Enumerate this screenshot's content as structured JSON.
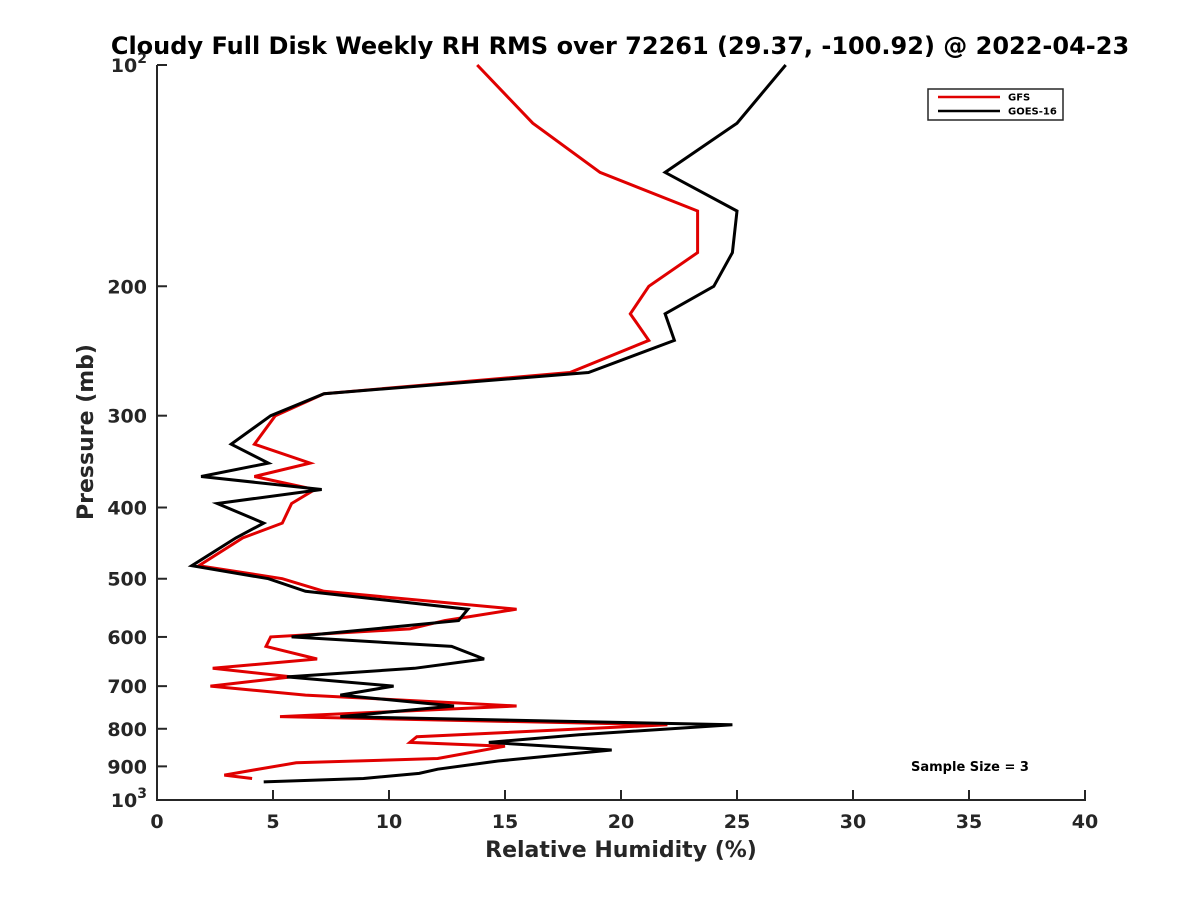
{
  "chart_data": {
    "type": "line",
    "title": "Cloudy Full Disk Weekly RH RMS over 72261 (29.37, -100.92) @ 2022-04-23",
    "xlabel": "Relative Humidity (%)",
    "ylabel": "Pressure (mb)",
    "xlim": [
      0,
      40
    ],
    "ylim": [
      100,
      1000
    ],
    "yscale": "log",
    "yreversed": true,
    "grid": false,
    "legend_position": "top-right",
    "x_ticks": [
      "0",
      "5",
      "10",
      "15",
      "20",
      "25",
      "30",
      "35",
      "40"
    ],
    "y_ticks": [
      {
        "value": 100,
        "base": "10",
        "exp": "2"
      },
      {
        "value": 200,
        "label": "200"
      },
      {
        "value": 300,
        "label": "300"
      },
      {
        "value": 400,
        "label": "400"
      },
      {
        "value": 500,
        "label": "500"
      },
      {
        "value": 600,
        "label": "600"
      },
      {
        "value": 700,
        "label": "700"
      },
      {
        "value": 800,
        "label": "800"
      },
      {
        "value": 900,
        "label": "900"
      },
      {
        "value": 1000,
        "base": "10",
        "exp": "3"
      }
    ],
    "annotation": "Sample Size = 3",
    "series": [
      {
        "name": "GFS",
        "color": "#e00000",
        "points": [
          [
            13.8,
            100
          ],
          [
            16.2,
            120
          ],
          [
            19.1,
            140
          ],
          [
            23.3,
            158
          ],
          [
            23.3,
            180
          ],
          [
            21.2,
            200
          ],
          [
            20.4,
            218
          ],
          [
            21.2,
            237
          ],
          [
            17.8,
            262
          ],
          [
            7.2,
            280
          ],
          [
            5.1,
            300
          ],
          [
            4.2,
            328
          ],
          [
            6.6,
            348
          ],
          [
            4.2,
            363
          ],
          [
            6.8,
            378
          ],
          [
            5.8,
            395
          ],
          [
            5.4,
            420
          ],
          [
            3.7,
            440
          ],
          [
            1.8,
            480
          ],
          [
            5.4,
            500
          ],
          [
            7.2,
            520
          ],
          [
            15.5,
            550
          ],
          [
            12.4,
            570
          ],
          [
            10.9,
            585
          ],
          [
            4.9,
            600
          ],
          [
            4.7,
            618
          ],
          [
            6.9,
            643
          ],
          [
            2.4,
            662
          ],
          [
            5.8,
            680
          ],
          [
            2.3,
            700
          ],
          [
            6.4,
            720
          ],
          [
            15.5,
            745
          ],
          [
            5.3,
            770
          ],
          [
            22.0,
            790
          ],
          [
            11.2,
            820
          ],
          [
            10.9,
            835
          ],
          [
            15.0,
            845
          ],
          [
            12.1,
            878
          ],
          [
            6.0,
            890
          ],
          [
            4.2,
            910
          ],
          [
            2.9,
            925
          ],
          [
            4.1,
            935
          ]
        ]
      },
      {
        "name": "GOES-16",
        "color": "#000000",
        "points": [
          [
            27.1,
            100
          ],
          [
            25.0,
            120
          ],
          [
            21.9,
            140
          ],
          [
            25.0,
            158
          ],
          [
            24.8,
            180
          ],
          [
            24.0,
            200
          ],
          [
            21.9,
            218
          ],
          [
            22.3,
            237
          ],
          [
            18.6,
            262
          ],
          [
            7.2,
            280
          ],
          [
            4.9,
            300
          ],
          [
            3.2,
            328
          ],
          [
            4.8,
            348
          ],
          [
            1.9,
            363
          ],
          [
            7.1,
            378
          ],
          [
            2.6,
            395
          ],
          [
            4.6,
            420
          ],
          [
            3.4,
            440
          ],
          [
            1.5,
            480
          ],
          [
            4.8,
            500
          ],
          [
            6.4,
            520
          ],
          [
            13.4,
            550
          ],
          [
            13.0,
            570
          ],
          [
            5.8,
            600
          ],
          [
            12.7,
            618
          ],
          [
            14.1,
            643
          ],
          [
            11.1,
            662
          ],
          [
            5.6,
            680
          ],
          [
            10.2,
            700
          ],
          [
            7.9,
            720
          ],
          [
            12.8,
            745
          ],
          [
            7.9,
            770
          ],
          [
            24.8,
            790
          ],
          [
            18.2,
            815
          ],
          [
            14.3,
            835
          ],
          [
            19.6,
            855
          ],
          [
            14.7,
            885
          ],
          [
            12.1,
            908
          ],
          [
            11.3,
            920
          ],
          [
            8.9,
            935
          ],
          [
            4.6,
            945
          ]
        ]
      }
    ]
  }
}
